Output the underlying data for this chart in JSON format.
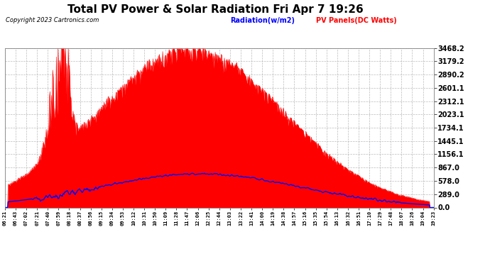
{
  "title": "Total PV Power & Solar Radiation Fri Apr 7 19:26",
  "copyright": "Copyright 2023 Cartronics.com",
  "legend_radiation": "Radiation(w/m2)",
  "legend_pv": "PV Panels(DC Watts)",
  "background_color": "#ffffff",
  "plot_bg_color": "#ffffff",
  "pv_color": "red",
  "radiation_color": "blue",
  "grid_color": "#cccccc",
  "ytick_labels": [
    "0.0",
    "289.0",
    "578.0",
    "867.0",
    "1156.1",
    "1445.1",
    "1734.1",
    "2023.1",
    "2312.1",
    "2601.1",
    "2890.2",
    "3179.2",
    "3468.2"
  ],
  "ytick_values": [
    0,
    289,
    578,
    867,
    1156.1,
    1445.1,
    1734.1,
    2023.1,
    2312.1,
    2601.1,
    2890.2,
    3179.2,
    3468.2
  ],
  "ymax": 3468.2,
  "xtick_labels": [
    "06:21",
    "06:43",
    "07:02",
    "07:21",
    "07:40",
    "07:59",
    "08:18",
    "08:37",
    "08:56",
    "09:15",
    "09:34",
    "09:53",
    "10:12",
    "10:31",
    "10:50",
    "11:09",
    "11:28",
    "11:47",
    "12:06",
    "12:25",
    "12:44",
    "13:03",
    "13:22",
    "13:41",
    "14:00",
    "14:19",
    "14:38",
    "14:57",
    "15:16",
    "15:35",
    "15:54",
    "16:13",
    "16:32",
    "16:51",
    "17:10",
    "17:29",
    "17:48",
    "18:07",
    "18:26",
    "19:04",
    "19:23"
  ],
  "num_points": 800
}
